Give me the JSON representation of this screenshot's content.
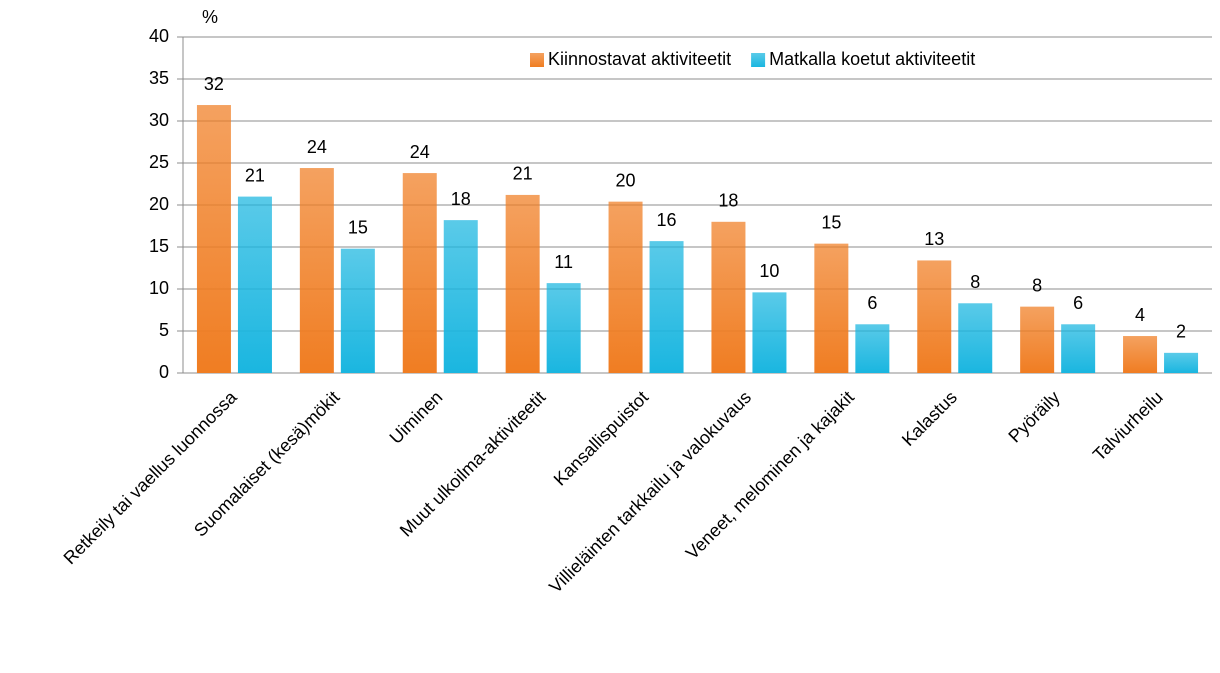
{
  "chart_data": {
    "type": "bar",
    "y_label": "%",
    "categories": [
      "Retkeily tai vaellus luonnossa",
      "Suomalaiset (kesä)mökit",
      "Uiminen",
      "Muut ulkoilma-aktiviteetit",
      "Kansallispuistot",
      "Villieläinten tarkkailu ja valokuvaus",
      "Veneet, melominen ja kajakit",
      "Kalastus",
      "Pyöräily",
      "Talviurheilu"
    ],
    "series": [
      {
        "name": "Kiinnostavat aktiviteetit",
        "color": "#f07d22",
        "values": [
          31.9,
          24.4,
          23.8,
          21.2,
          20.4,
          18.0,
          15.4,
          13.4,
          7.9,
          4.4
        ],
        "value_labels": [
          "32",
          "24",
          "24",
          "21",
          "20",
          "18",
          "15",
          "13",
          "8",
          "4"
        ]
      },
      {
        "name": "Matkalla koetut aktiviteetit",
        "color": "#1ab6e0",
        "values": [
          21.0,
          14.8,
          18.2,
          10.7,
          15.7,
          9.6,
          5.8,
          8.3,
          5.8,
          2.4
        ],
        "value_labels": [
          "21",
          "15",
          "18",
          "11",
          "16",
          "10",
          "6",
          "8",
          "6",
          "2"
        ]
      }
    ],
    "ylim": [
      0,
      40
    ],
    "yticks": [
      0,
      5,
      10,
      15,
      20,
      25,
      30,
      35,
      40
    ],
    "grid": true,
    "legend": "top-right"
  }
}
